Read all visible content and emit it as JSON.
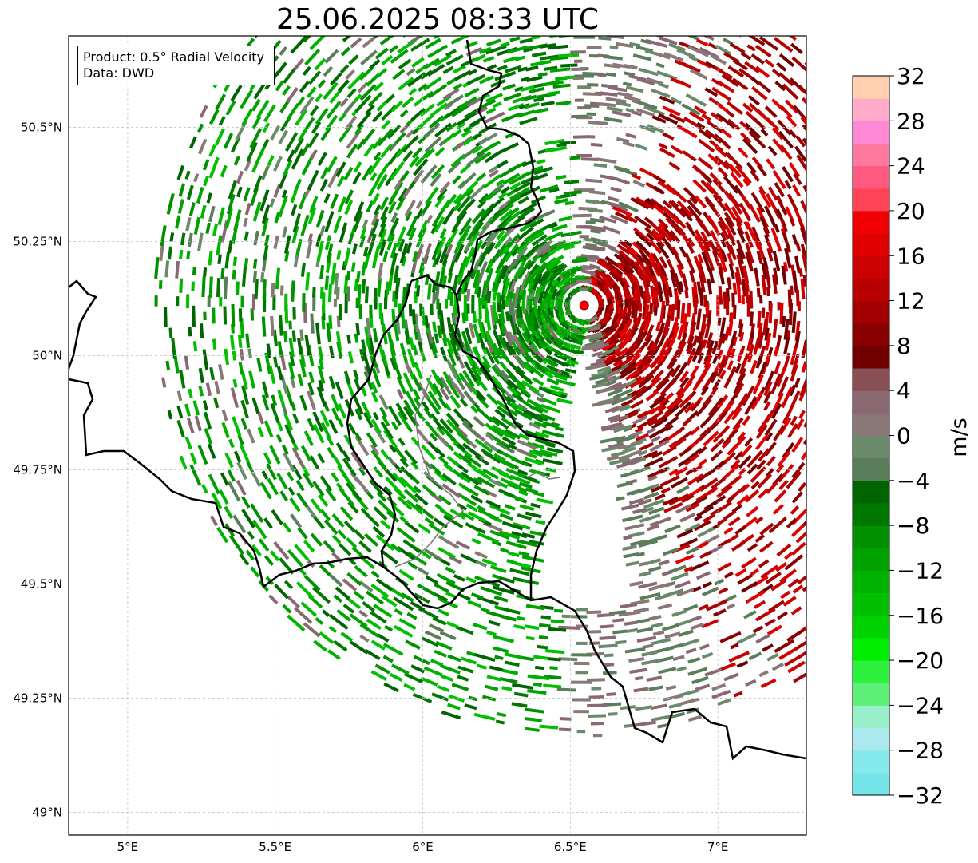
{
  "title": "25.06.2025 08:33 UTC",
  "info": {
    "product": "Product: 0.5° Radial Velocity",
    "data": "Data: DWD"
  },
  "map": {
    "lon_range": [
      4.8,
      7.3
    ],
    "lat_range": [
      48.95,
      50.7
    ],
    "lon_ticks": [
      {
        "value": 5.0,
        "label": "5°E"
      },
      {
        "value": 5.5,
        "label": "5.5°E"
      },
      {
        "value": 6.0,
        "label": "6°E"
      },
      {
        "value": 6.5,
        "label": "6.5°E"
      },
      {
        "value": 7.0,
        "label": "7°E"
      }
    ],
    "lat_ticks": [
      {
        "value": 49.0,
        "label": "49°N"
      },
      {
        "value": 49.25,
        "label": "49.25°N"
      },
      {
        "value": 49.5,
        "label": "49.5°N"
      },
      {
        "value": 49.75,
        "label": "49.75°N"
      },
      {
        "value": 50.0,
        "label": "50°N"
      },
      {
        "value": 50.25,
        "label": "50.25°N"
      },
      {
        "value": 50.5,
        "label": "50.5°N"
      }
    ],
    "radar_site": {
      "lon": 6.547,
      "lat": 50.11,
      "color": "#ff0000"
    }
  },
  "colorbar": {
    "label": "m/s",
    "range": [
      -32,
      32
    ],
    "tick_labels": [
      "32",
      "28",
      "24",
      "20",
      "16",
      "12",
      "8",
      "4",
      "0",
      "−4",
      "−8",
      "−12",
      "−16",
      "−20",
      "−24",
      "−28",
      "−32"
    ],
    "colors": [
      "#74e4e8",
      "#86e9ec",
      "#aae9ee",
      "#9aefcb",
      "#5df17a",
      "#2cf23d",
      "#00ee00",
      "#00d200",
      "#00c000",
      "#00b200",
      "#00a200",
      "#009000",
      "#007800",
      "#006400",
      "#5a7d5a",
      "#6b8a6b",
      "#8a7878",
      "#8a6872",
      "#885055",
      "#700000",
      "#880000",
      "#a20000",
      "#b80000",
      "#cc0000",
      "#e00000",
      "#f00000",
      "#ff4458",
      "#ff5a80",
      "#ff78a0",
      "#ff88d4",
      "#ffaac8",
      "#ffd0b0"
    ]
  }
}
